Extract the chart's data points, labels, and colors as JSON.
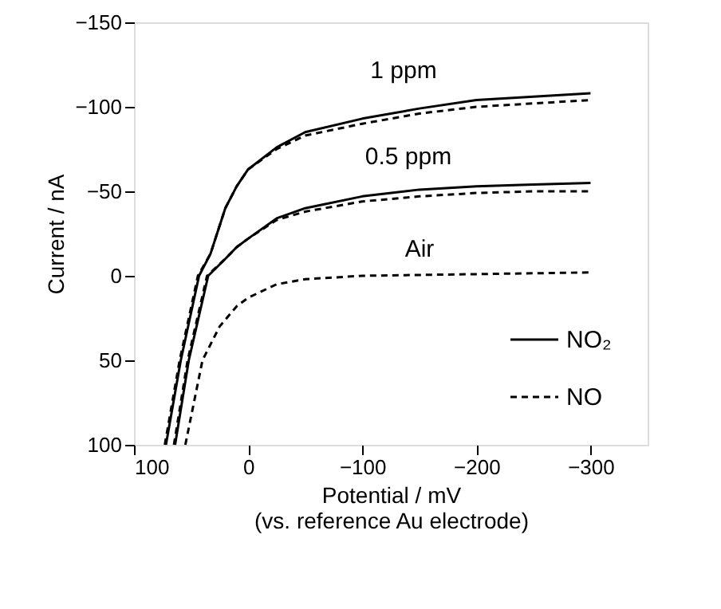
{
  "chart_data": {
    "type": "line",
    "xlabel": "Potential / mV\n(vs. reference Au electrode)",
    "ylabel": "Current / nA",
    "xlim": [
      100,
      -350
    ],
    "ylim": [
      100,
      -150
    ],
    "xticks": [
      100,
      0,
      -100,
      -200,
      -300
    ],
    "yticks": [
      -150,
      -100,
      -50,
      0,
      50,
      100
    ],
    "grid": false,
    "legend": "bottom right",
    "series": [
      {
        "name": "NO₂",
        "color": "#000000",
        "line_style": "solid",
        "x": [
          72,
          59,
          43,
          33,
          20,
          10,
          0,
          -25,
          -50,
          -100,
          -150,
          -200,
          -250,
          -300
        ],
        "values": [
          100,
          50,
          0,
          -13,
          -40,
          -53,
          -63,
          -76,
          -85,
          -93,
          -99,
          -104,
          -106,
          -108
        ]
      },
      {
        "name": "NO",
        "color": "#000000",
        "line_style": "dashed",
        "x": [
          73,
          60,
          44,
          33,
          20,
          10,
          0,
          -25,
          -50,
          -100,
          -150,
          -200,
          -250,
          -300
        ],
        "values": [
          100,
          50,
          0,
          -13,
          -40,
          -53,
          -63,
          -75,
          -83,
          -90,
          -96,
          -100,
          -102,
          -104
        ]
      },
      {
        "color": "#000000",
        "line_style": "solid",
        "x": [
          64,
          52,
          35,
          20,
          10,
          0,
          -25,
          -50,
          -100,
          -150,
          -200,
          -250,
          -300
        ],
        "values": [
          100,
          50,
          0,
          -10,
          -17,
          -22,
          -34,
          -40,
          -47,
          -51,
          -53,
          -54,
          -55
        ]
      },
      {
        "color": "#000000",
        "line_style": "dashed",
        "x": [
          65,
          53,
          36,
          20,
          10,
          0,
          -25,
          -50,
          -100,
          -150,
          -200,
          -250,
          -300
        ],
        "values": [
          100,
          50,
          0,
          -10,
          -17,
          -22,
          -33,
          -38,
          -44,
          -47,
          -49,
          -50,
          -50
        ]
      },
      {
        "color": "#000000",
        "line_style": "dashed",
        "x": [
          55,
          40,
          25,
          10,
          0,
          -25,
          -50,
          -100,
          -200,
          -300
        ],
        "values": [
          100,
          50,
          30,
          18,
          13,
          5,
          2,
          0,
          -1,
          -2
        ]
      }
    ],
    "annotations": [
      "1 ppm",
      "0.5 ppm",
      "Air"
    ]
  }
}
